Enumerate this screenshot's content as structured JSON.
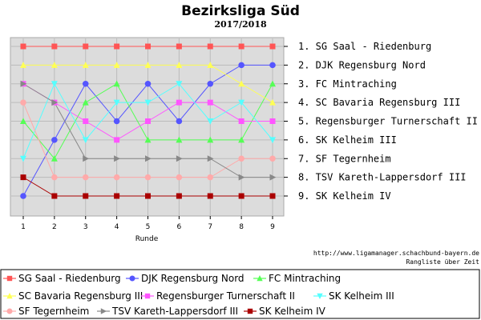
{
  "header": {
    "title": "Bezirksliga Süd",
    "subtitle": "2017/2018"
  },
  "footer": {
    "source": "http://www.ligamanager.schachbund-bayern.de",
    "caption": "Rangliste über Zeit"
  },
  "chart_data": {
    "type": "line",
    "xlabel": "Runde",
    "ylabel": "",
    "x": [
      1,
      2,
      3,
      4,
      5,
      6,
      7,
      8,
      9
    ],
    "xlim": [
      0.7,
      9.3
    ],
    "ylim": [
      9.6,
      0.8
    ],
    "y_inverted": true,
    "grid": true,
    "rank_labels": [
      "1. SG Saal - Riedenburg",
      "2. DJK Regensburg Nord",
      "3. FC Mintraching",
      "4. SC Bavaria Regensburg III",
      "5. Regensburger Turnerschaft II",
      "6. SK Kelheim III",
      "7. SF Tegernheim",
      "8. TSV Kareth-Lappersdorf III",
      "9. SK Kelheim IV"
    ],
    "legend_position": "bottom",
    "series": [
      {
        "name": "SG Saal - Riedenburg",
        "color": "#ff5555",
        "marker": "square",
        "values": [
          1,
          1,
          1,
          1,
          1,
          1,
          1,
          1,
          1
        ]
      },
      {
        "name": "DJK Regensburg Nord",
        "color": "#5555ff",
        "marker": "circle",
        "values": [
          9,
          6,
          3,
          5,
          3,
          5,
          3,
          2,
          2
        ]
      },
      {
        "name": "FC Mintraching",
        "color": "#55ff55",
        "marker": "triangle-up",
        "values": [
          5,
          7,
          4,
          3,
          6,
          6,
          6,
          6,
          3
        ]
      },
      {
        "name": "SC Bavaria Regensburg III",
        "color": "#ffff55",
        "marker": "triangle-up",
        "values": [
          2,
          2,
          2,
          2,
          2,
          2,
          2,
          3,
          4
        ]
      },
      {
        "name": "Regensburger Turnerschaft II",
        "color": "#ff55ff",
        "marker": "square",
        "values": [
          3,
          4,
          5,
          6,
          5,
          4,
          4,
          5,
          5
        ]
      },
      {
        "name": "SK Kelheim III",
        "color": "#55ffff",
        "marker": "triangle-down",
        "values": [
          7,
          3,
          6,
          4,
          4,
          3,
          5,
          4,
          6
        ]
      },
      {
        "name": "SF Tegernheim",
        "color": "#ffaaaa",
        "marker": "circle",
        "values": [
          4,
          8,
          8,
          8,
          8,
          8,
          8,
          7,
          7
        ]
      },
      {
        "name": "TSV Kareth-Lappersdorf III",
        "color": "#888888",
        "marker": "triangle-right",
        "values": [
          3,
          4,
          7,
          7,
          7,
          7,
          7,
          8,
          8
        ]
      },
      {
        "name": "SK Kelheim IV",
        "color": "#aa0000",
        "marker": "square",
        "values": [
          8,
          9,
          9,
          9,
          9,
          9,
          9,
          9,
          9
        ]
      }
    ]
  }
}
